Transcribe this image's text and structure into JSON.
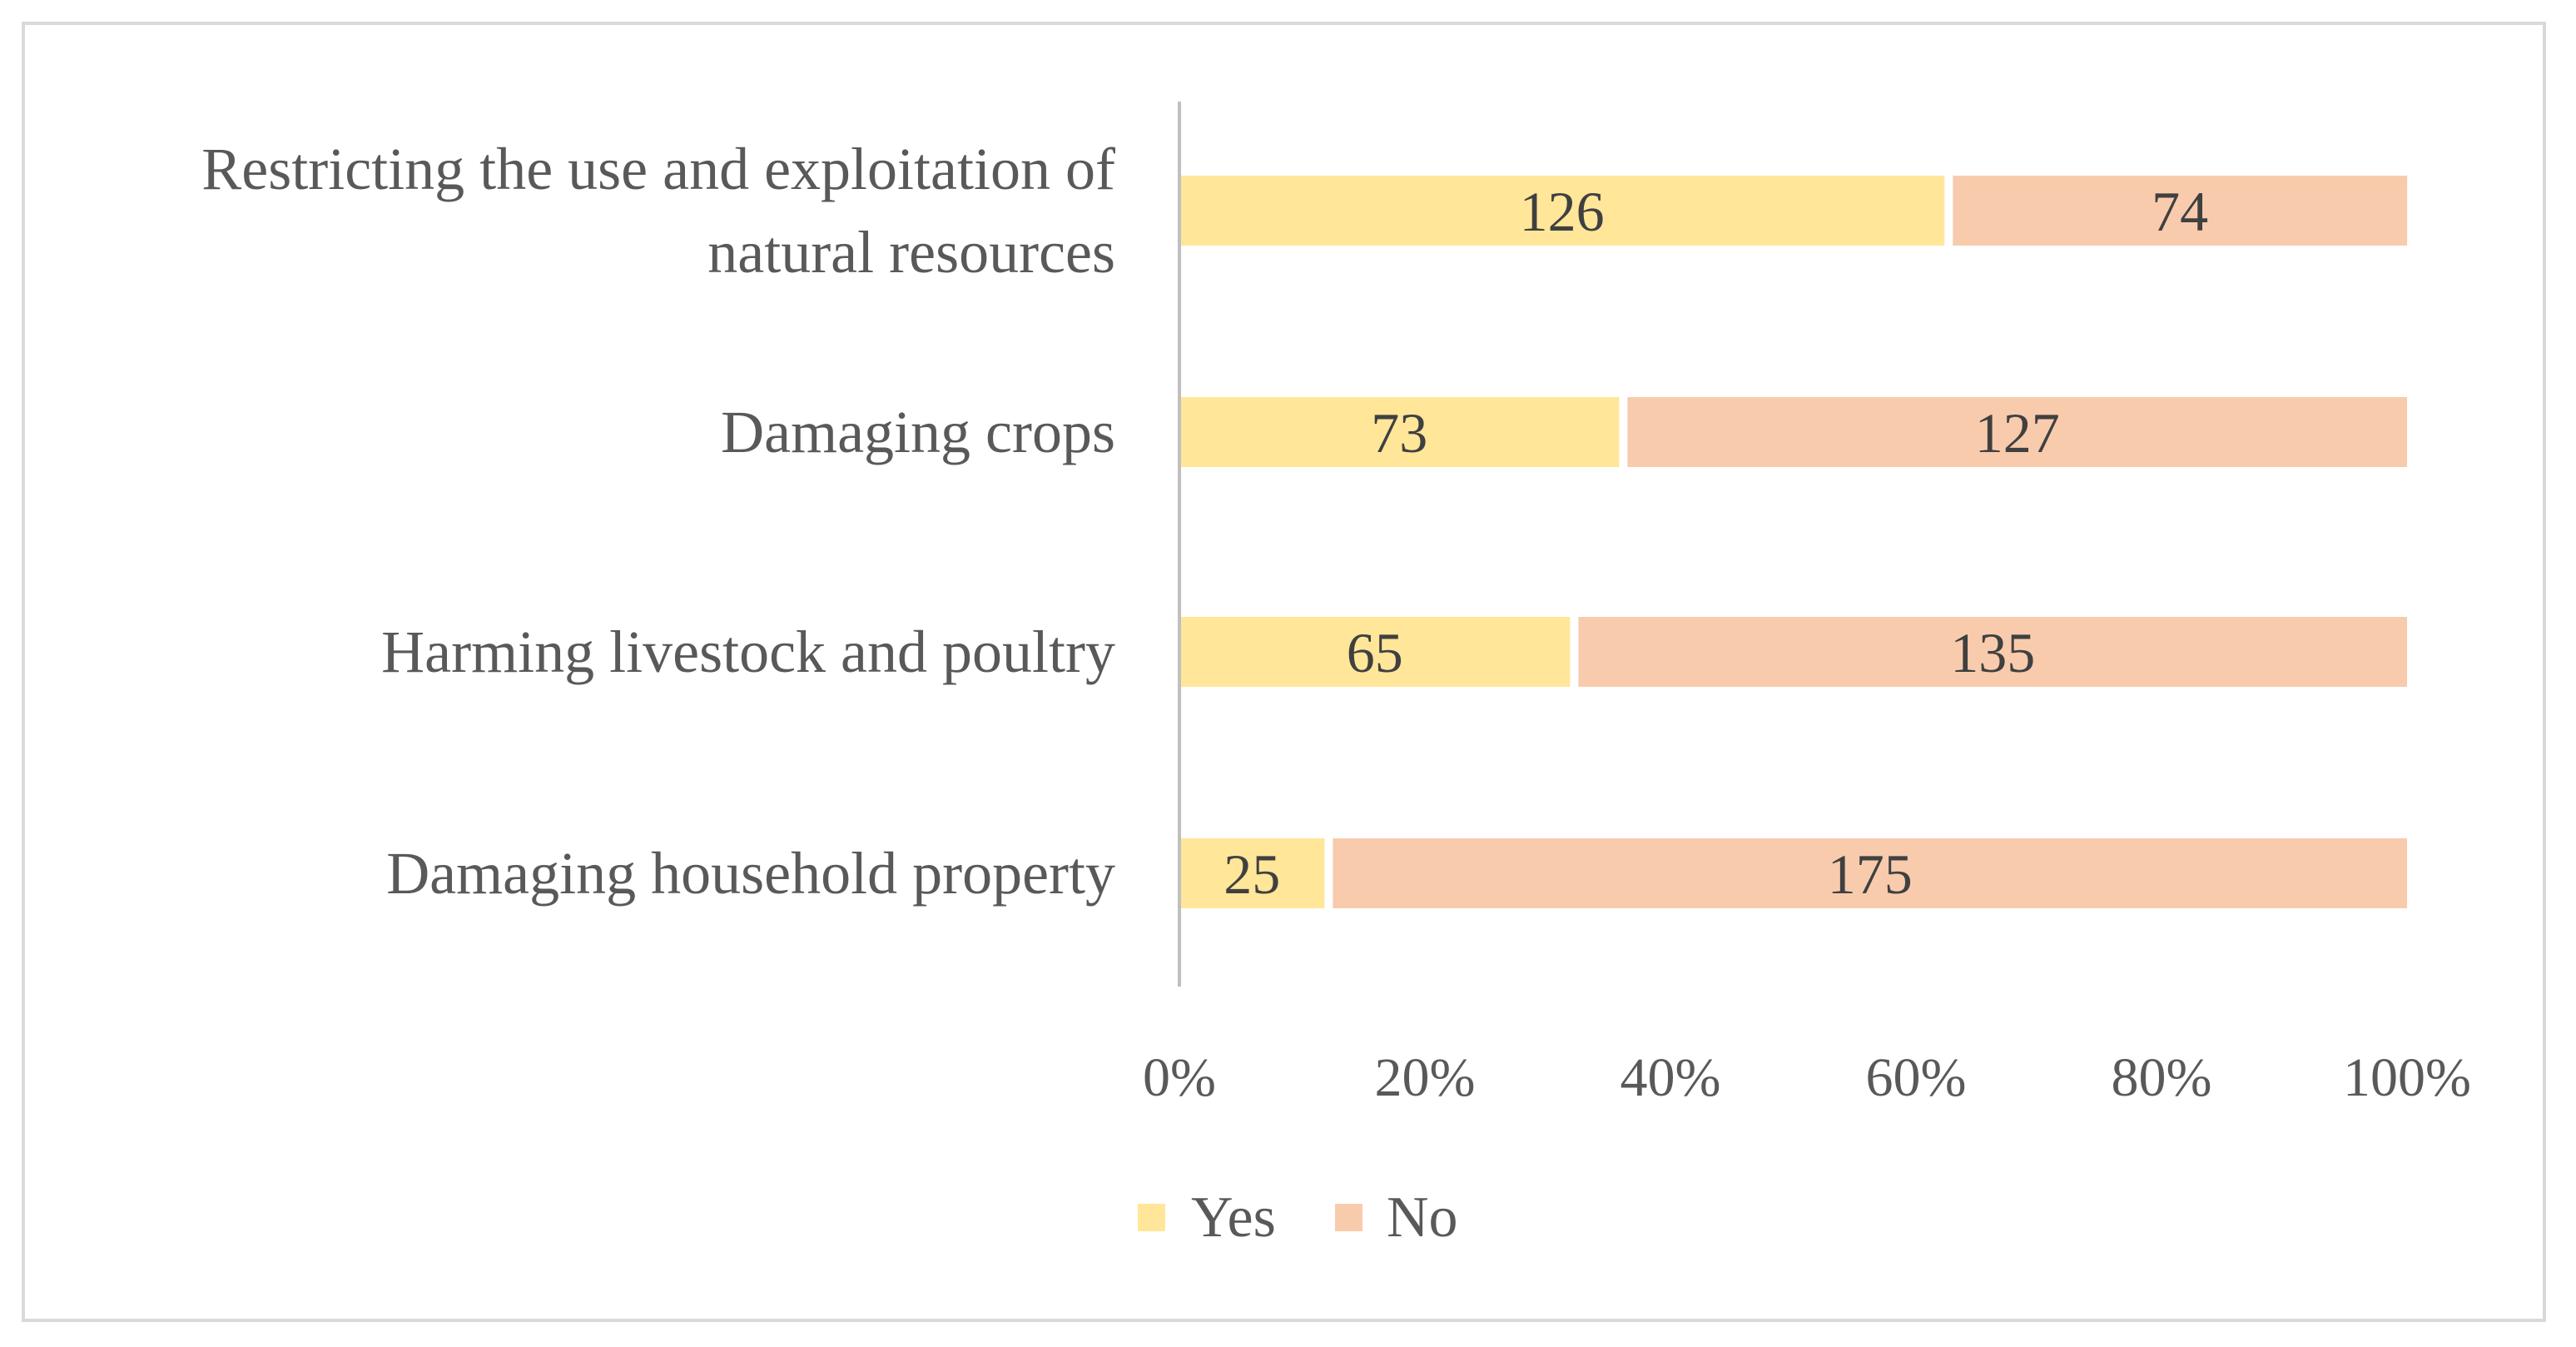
{
  "chart_data": {
    "type": "bar",
    "orientation": "horizontal",
    "stacking": "percent",
    "categories": [
      [
        "Restricting the use and exploitation of",
        "natural resources"
      ],
      [
        "Damaging crops"
      ],
      [
        "Harming livestock and poultry"
      ],
      [
        "Damaging household property"
      ]
    ],
    "series": [
      {
        "name": "Yes",
        "color": "#ffe699",
        "values": [
          126,
          73,
          65,
          25
        ]
      },
      {
        "name": "No",
        "color": "#f8cbad",
        "values": [
          74,
          127,
          135,
          175
        ]
      }
    ],
    "x_ticks": [
      "0%",
      "20%",
      "40%",
      "60%",
      "80%",
      "100%"
    ],
    "xlim": [
      0,
      100
    ],
    "title": "",
    "xlabel": "",
    "ylabel": "",
    "grid": false,
    "legend": {
      "position": "bottom",
      "entries": [
        "Yes",
        "No"
      ]
    }
  }
}
